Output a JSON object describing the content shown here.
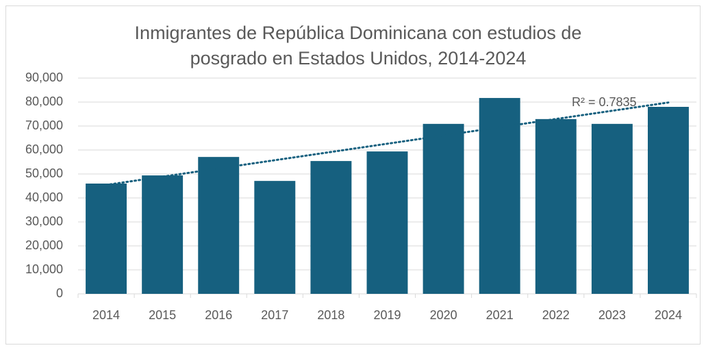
{
  "chart_data": {
    "type": "bar",
    "title": "Inmigrantes de República Dominicana con estudios de posgrado en Estados Unidos, 2014-2024",
    "categories": [
      "2014",
      "2015",
      "2016",
      "2017",
      "2018",
      "2019",
      "2020",
      "2021",
      "2022",
      "2023",
      "2024"
    ],
    "values": [
      46000,
      49400,
      57100,
      47100,
      55400,
      59400,
      70900,
      81700,
      72900,
      70900,
      78000
    ],
    "color": "#16607f",
    "ylim": [
      0,
      90000
    ],
    "yticks": [
      0,
      {
        "value": 10000,
        "label": "10,000"
      },
      {
        "value": 20000,
        "label": "20,000"
      },
      {
        "value": 30000,
        "label": "30,000"
      },
      {
        "value": 40000,
        "label": "40,000"
      },
      {
        "value": 50000,
        "label": "50,000"
      },
      {
        "value": 60000,
        "label": "60,000"
      },
      {
        "value": 70000,
        "label": "70,000"
      },
      {
        "value": 80000,
        "label": "80,000"
      },
      {
        "value": 90000,
        "label": "90,000"
      }
    ],
    "grid": true,
    "trendline": "linear",
    "annotation": "R² = 0.7835"
  }
}
